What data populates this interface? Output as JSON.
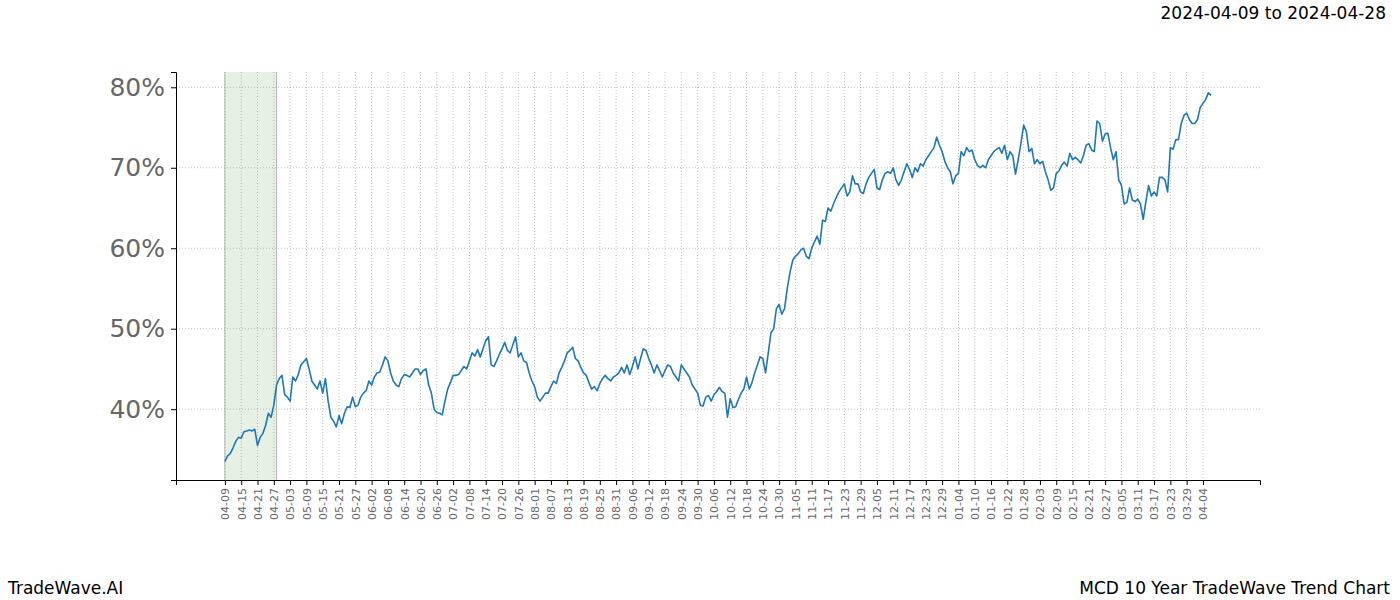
{
  "chart_data": {
    "type": "line",
    "title": "MCD 10 Year TradeWave Trend Chart",
    "subtitle": "2024-04-09 to 2024-04-28",
    "annotations": [
      "TradeWave.AI"
    ],
    "grid": true,
    "highlight": {
      "start": 0,
      "end": 19
    },
    "categories": [
      "04-09",
      null,
      null,
      null,
      null,
      null,
      "04-15",
      null,
      null,
      null,
      null,
      null,
      "04-21",
      null,
      null,
      null,
      null,
      null,
      "04-27",
      null,
      null,
      null,
      null,
      null,
      "05-03",
      null,
      null,
      null,
      null,
      null,
      "05-09",
      null,
      null,
      null,
      null,
      null,
      "05-15",
      null,
      null,
      null,
      null,
      null,
      "05-21",
      null,
      null,
      null,
      null,
      null,
      "05-27",
      null,
      null,
      null,
      null,
      null,
      "06-02",
      null,
      null,
      null,
      null,
      null,
      "06-08",
      null,
      null,
      null,
      null,
      null,
      "06-14",
      null,
      null,
      null,
      null,
      null,
      "06-20",
      null,
      null,
      null,
      null,
      null,
      "06-26",
      null,
      null,
      null,
      null,
      null,
      "07-02",
      null,
      null,
      null,
      null,
      null,
      "07-08",
      null,
      null,
      null,
      null,
      null,
      "07-14",
      null,
      null,
      null,
      null,
      null,
      "07-20",
      null,
      null,
      null,
      null,
      null,
      "07-26",
      null,
      null,
      null,
      null,
      null,
      "08-01",
      null,
      null,
      null,
      null,
      null,
      "08-07",
      null,
      null,
      null,
      null,
      null,
      "08-13",
      null,
      null,
      null,
      null,
      null,
      "08-19",
      null,
      null,
      null,
      null,
      null,
      "08-25",
      null,
      null,
      null,
      null,
      null,
      "08-31",
      null,
      null,
      null,
      null,
      null,
      "09-06",
      null,
      null,
      null,
      null,
      null,
      "09-12",
      null,
      null,
      null,
      null,
      null,
      "09-18",
      null,
      null,
      null,
      null,
      null,
      "09-24",
      null,
      null,
      null,
      null,
      null,
      "09-30",
      null,
      null,
      null,
      null,
      null,
      "10-06",
      null,
      null,
      null,
      null,
      null,
      "10-12",
      null,
      null,
      null,
      null,
      null,
      "10-18",
      null,
      null,
      null,
      null,
      null,
      "10-24",
      null,
      null,
      null,
      null,
      null,
      "10-30",
      null,
      null,
      null,
      null,
      null,
      "11-05",
      null,
      null,
      null,
      null,
      null,
      "11-11",
      null,
      null,
      null,
      null,
      null,
      "11-17",
      null,
      null,
      null,
      null,
      null,
      "11-23",
      null,
      null,
      null,
      null,
      null,
      "11-29",
      null,
      null,
      null,
      null,
      null,
      "12-05",
      null,
      null,
      null,
      null,
      null,
      "12-11",
      null,
      null,
      null,
      null,
      null,
      "12-17",
      null,
      null,
      null,
      null,
      null,
      "12-23",
      null,
      null,
      null,
      null,
      null,
      "12-29",
      null,
      null,
      null,
      null,
      null,
      "01-04",
      null,
      null,
      null,
      null,
      null,
      "01-10",
      null,
      null,
      null,
      null,
      null,
      "01-16",
      null,
      null,
      null,
      null,
      null,
      "01-22",
      null,
      null,
      null,
      null,
      null,
      "01-28",
      null,
      null,
      null,
      null,
      null,
      "02-03",
      null,
      null,
      null,
      null,
      null,
      "02-09",
      null,
      null,
      null,
      null,
      null,
      "02-15",
      null,
      null,
      null,
      null,
      null,
      "02-21",
      null,
      null,
      null,
      null,
      null,
      "02-27",
      null,
      null,
      null,
      null,
      null,
      "03-05",
      null,
      null,
      null,
      null,
      null,
      "03-11",
      null,
      null,
      null,
      null,
      null,
      "03-17",
      null,
      null,
      null,
      null,
      null,
      "03-23",
      null,
      null,
      null,
      null,
      null,
      "03-29",
      null,
      null,
      null,
      null,
      null,
      "04-04",
      null,
      null,
      null
    ],
    "series": [
      {
        "name": "MCD",
        "color": "#1f77b4",
        "values": [
          33.5,
          34.2,
          34.5,
          35.2,
          36,
          36.5,
          36.4,
          37.2,
          37.3,
          37.4,
          37.3,
          37.5,
          35.5,
          36.5,
          37,
          38,
          39.5,
          39,
          40.5,
          43,
          43.8,
          44.2,
          41.8,
          41.5,
          41,
          44,
          43.5,
          44.3,
          45.5,
          45.9,
          46.3,
          45,
          43.5,
          43,
          42.5,
          43.5,
          42,
          43.8,
          41,
          39,
          38.5,
          37.8,
          39.2,
          38.2,
          39.5,
          40.3,
          40.2,
          41.5,
          40.3,
          40.5,
          41.5,
          42,
          42.3,
          43.5,
          43,
          44,
          44.5,
          44.6,
          45.5,
          46.5,
          46,
          44.5,
          43.5,
          43,
          42.8,
          43.8,
          44.3,
          44.2,
          44,
          44.5,
          45,
          45,
          44.3,
          44.8,
          45,
          43,
          42,
          40,
          39.6,
          39.5,
          39.3,
          41,
          42.5,
          43.3,
          44.2,
          44.2,
          44.3,
          44.8,
          45.3,
          45,
          46,
          47,
          46.6,
          47.4,
          46.5,
          47.5,
          48.5,
          49,
          45.5,
          45.3,
          46,
          46.8,
          47.5,
          48.3,
          47.3,
          47,
          48,
          49,
          46.5,
          47,
          46,
          45.8,
          44.5,
          43.5,
          42.8,
          41.5,
          41,
          41.5,
          42,
          42,
          42.8,
          43.5,
          43.2,
          44.5,
          45.2,
          46,
          47,
          47.3,
          47.7,
          46.3,
          46,
          45.2,
          44.5,
          44.2,
          43.3,
          42.5,
          42.8,
          42.3,
          43.2,
          43.8,
          44.2,
          43.8,
          43.5,
          44,
          44.2,
          44.5,
          45.2,
          44.5,
          45.5,
          44.3,
          45.3,
          46.5,
          45,
          46.3,
          47.5,
          47.3,
          46.3,
          45.5,
          44.5,
          45.5,
          44.8,
          44,
          44.8,
          45.5,
          45.3,
          44.5,
          44,
          43.5,
          45.5,
          45,
          44.5,
          44,
          43,
          42.5,
          42,
          40.5,
          40.4,
          41.5,
          41.7,
          41,
          41.8,
          42.2,
          42.7,
          42.2,
          42,
          39,
          41.3,
          40.2,
          40.3,
          41.2,
          42,
          42.5,
          44,
          42.5,
          43.3,
          44.5,
          45.5,
          46.5,
          46.3,
          44.5,
          47,
          49.5,
          50,
          52.5,
          53,
          51.8,
          52.5,
          55,
          57,
          58.5,
          59,
          59.3,
          59.8,
          60,
          59,
          58.7,
          60,
          60.8,
          61.5,
          60.5,
          63.5,
          63.3,
          65,
          64.6,
          65.5,
          66.3,
          67,
          67.5,
          68,
          66.5,
          67,
          69,
          68,
          68,
          67,
          66.8,
          68,
          68.8,
          69.3,
          69.8,
          67.5,
          67.3,
          68.5,
          69.3,
          69.5,
          69.3,
          70,
          68.5,
          67.8,
          68.5,
          69.5,
          70.5,
          69.8,
          68.8,
          70,
          69.5,
          70.5,
          70.2,
          71,
          71.5,
          72,
          72.5,
          73.8,
          72.8,
          72,
          70.8,
          70,
          69.5,
          68,
          69,
          69.3,
          72,
          71.5,
          72.5,
          72,
          72.2,
          71,
          70.3,
          70,
          70.3,
          70,
          71,
          71.5,
          72,
          72.3,
          72.5,
          71.8,
          72.8,
          71,
          72,
          71.5,
          69.2,
          71,
          73,
          75.3,
          74.5,
          72,
          72.4,
          70.5,
          71,
          70.5,
          70.8,
          69.5,
          68.5,
          67.2,
          67.5,
          69.3,
          69.6,
          70.3,
          70.7,
          70.2,
          71.8,
          71,
          71.3,
          71,
          70.6,
          71.5,
          72.8,
          73,
          72.2,
          72,
          75.8,
          75.5,
          73.3,
          74.2,
          74.3,
          72.5,
          71,
          72,
          68.5,
          67.8,
          65.5,
          65.7,
          67.5,
          66,
          65.8,
          66.1,
          65.5,
          63.6,
          65.8,
          67.8,
          66.5,
          67,
          66.5,
          68.8,
          68.8,
          68.5,
          67,
          72.5,
          72.3,
          73.5,
          73.5,
          75.5,
          76.5,
          76.8,
          76,
          75.5,
          75.5,
          76,
          77.5,
          78,
          78.5,
          79.3,
          79
        ]
      }
    ],
    "ylim": [
      31.2,
      81.9
    ],
    "yticks": [
      {
        "value": 40,
        "label": "40%"
      },
      {
        "value": 50,
        "label": "50%"
      },
      {
        "value": 60,
        "label": "60%"
      },
      {
        "value": 70,
        "label": "70%"
      },
      {
        "value": 80,
        "label": "80%"
      }
    ]
  }
}
